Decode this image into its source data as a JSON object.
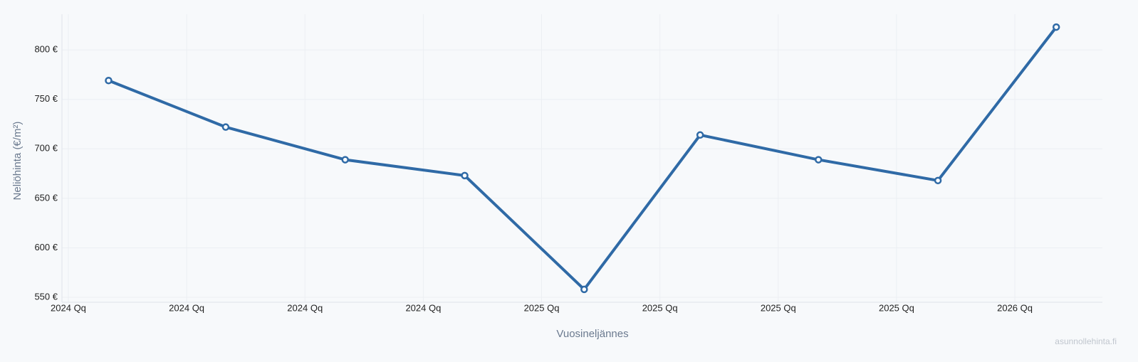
{
  "chart_data": {
    "type": "line",
    "x_label": "Vuosineljännes",
    "y_label": "Neliöhinta (€/m²)",
    "watermark": "asunnollehinta.fi",
    "x": [
      0.34,
      1.33,
      2.34,
      3.35,
      4.36,
      5.34,
      6.34,
      7.35,
      8.35
    ],
    "series": [
      {
        "name": "Neliöhinta",
        "color": "#2f6aa6",
        "values": [
          769,
          722,
          689,
          673,
          558,
          714,
          689,
          668,
          823
        ]
      }
    ],
    "xlim": [
      -0.054,
      8.74
    ],
    "xticks": [
      {
        "value": 0,
        "label": "2024 Qq"
      },
      {
        "value": 1,
        "label": "2024 Qq"
      },
      {
        "value": 2,
        "label": "2024 Qq"
      },
      {
        "value": 3,
        "label": "2024 Qq"
      },
      {
        "value": 4,
        "label": "2025 Qq"
      },
      {
        "value": 5,
        "label": "2025 Qq"
      },
      {
        "value": 6,
        "label": "2025 Qq"
      },
      {
        "value": 7,
        "label": "2025 Qq"
      },
      {
        "value": 8,
        "label": "2026 Qq"
      }
    ],
    "ylim": [
      545,
      836
    ],
    "yticks": [
      {
        "value": 550,
        "label": "550 €"
      },
      {
        "value": 600,
        "label": "600 €"
      },
      {
        "value": 650,
        "label": "650 €"
      },
      {
        "value": 700,
        "label": "700 €"
      },
      {
        "value": 750,
        "label": "750 €"
      },
      {
        "value": 800,
        "label": "800 €"
      }
    ],
    "grid": true
  }
}
